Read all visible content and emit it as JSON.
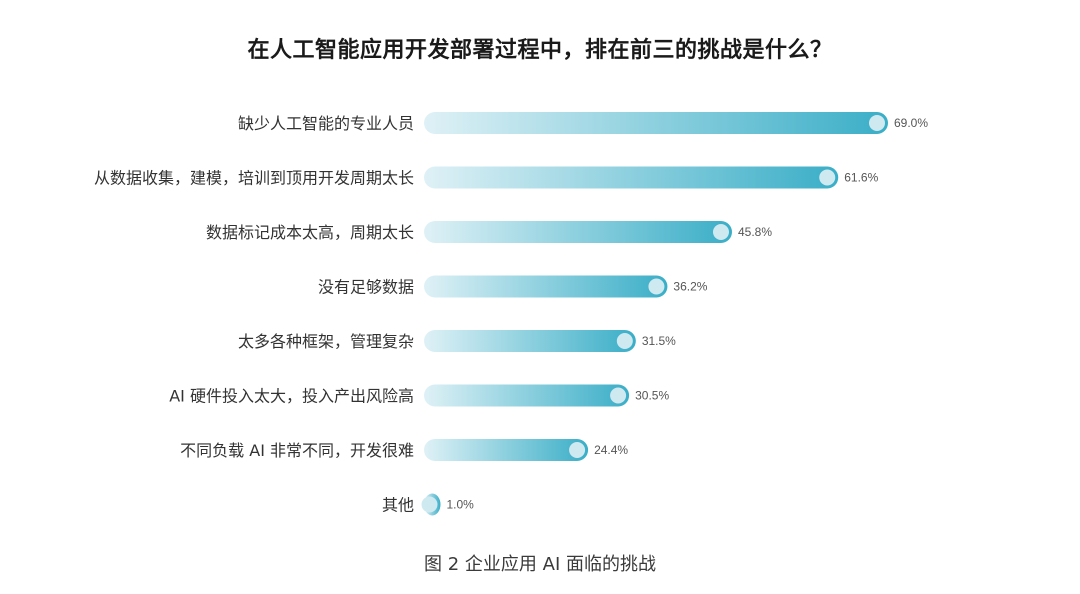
{
  "chart_data": {
    "type": "bar",
    "orientation": "horizontal",
    "title": "在人工智能应用开发部署过程中，排在前三的挑战是什么？",
    "caption": "图 2 企业应用 AI 面临的挑战",
    "categories": [
      "缺少人工智能的专业人员",
      "从数据收集，建模，培训到顶用开发周期太长",
      "数据标记成本太高，周期太长",
      "没有足够数据",
      "太多各种框架，管理复杂",
      "AI 硬件投入太大，投入产出风险高",
      "不同负载 AI 非常不同，开发很难",
      "其他"
    ],
    "values": [
      69.0,
      61.6,
      45.8,
      36.2,
      31.5,
      30.5,
      24.4,
      1.0
    ],
    "value_labels": [
      "69.0%",
      "61.6%",
      "45.8%",
      "36.2%",
      "31.5%",
      "30.5%",
      "24.4%",
      "1.0%"
    ],
    "unit": "%",
    "xlim": [
      0,
      69.0
    ],
    "grid": false,
    "legend": "none",
    "colors": {
      "bar_start": "#dff1f6",
      "bar_end": "#3aaec7",
      "knob": "#cfe9f0",
      "label": "#333333",
      "value": "#555555"
    }
  }
}
